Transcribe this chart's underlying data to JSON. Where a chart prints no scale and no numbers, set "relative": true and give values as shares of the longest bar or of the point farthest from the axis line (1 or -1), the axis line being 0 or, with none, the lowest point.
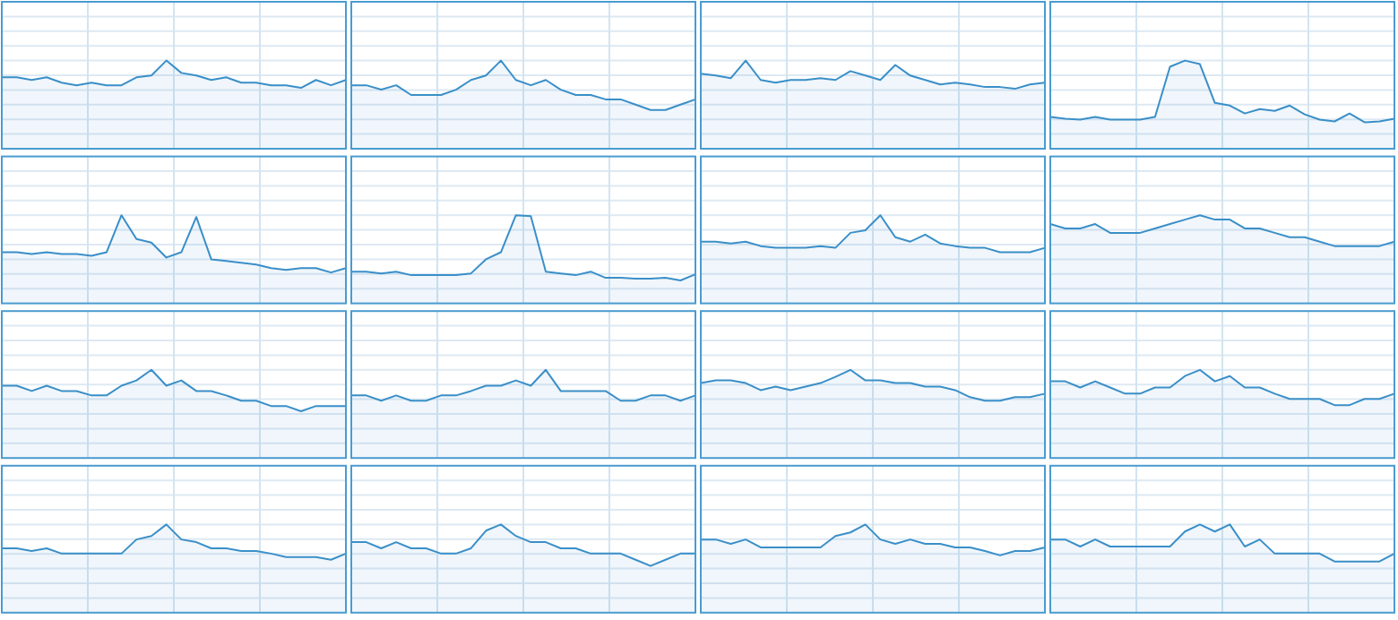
{
  "chart_data": [
    {
      "type": "area",
      "relative": true,
      "grid": true,
      "color": "#3a8fc8",
      "categories": [
        null,
        null,
        null,
        null,
        null,
        null,
        null,
        null,
        null,
        null,
        null,
        null,
        null,
        null,
        null,
        null,
        null,
        null,
        null,
        null,
        null,
        null,
        null,
        null
      ],
      "values": [
        0.81,
        0.81,
        0.78,
        0.81,
        0.75,
        0.72,
        0.75,
        0.72,
        0.72,
        0.81,
        0.83,
        1,
        0.86,
        0.83,
        0.78,
        0.81,
        0.75,
        0.75,
        0.72,
        0.72,
        0.69,
        0.78,
        0.72,
        0.78
      ]
    },
    {
      "type": "area",
      "relative": true,
      "grid": true,
      "color": "#3a8fc8",
      "categories": [
        null,
        null,
        null,
        null,
        null,
        null,
        null,
        null,
        null,
        null,
        null,
        null,
        null,
        null,
        null,
        null,
        null,
        null,
        null,
        null,
        null,
        null,
        null,
        null
      ],
      "values": [
        0.72,
        0.72,
        0.67,
        0.72,
        0.61,
        0.61,
        0.61,
        0.67,
        0.78,
        0.83,
        1,
        0.78,
        0.72,
        0.78,
        0.67,
        0.61,
        0.61,
        0.56,
        0.56,
        0.5,
        0.44,
        0.44,
        0.5,
        0.56
      ]
    },
    {
      "type": "area",
      "relative": true,
      "grid": true,
      "color": "#3a8fc8",
      "categories": [
        null,
        null,
        null,
        null,
        null,
        null,
        null,
        null,
        null,
        null,
        null,
        null,
        null,
        null,
        null,
        null,
        null,
        null,
        null,
        null,
        null,
        null,
        null,
        null
      ],
      "values": [
        0.85,
        0.83,
        0.8,
        1,
        0.78,
        0.75,
        0.78,
        0.78,
        0.8,
        0.78,
        0.88,
        0.83,
        0.78,
        0.95,
        0.83,
        0.78,
        0.73,
        0.75,
        0.73,
        0.7,
        0.7,
        0.68,
        0.73,
        0.75
      ]
    },
    {
      "type": "area",
      "relative": true,
      "grid": true,
      "color": "#3a8fc8",
      "categories": [
        null,
        null,
        null,
        null,
        null,
        null,
        null,
        null,
        null,
        null,
        null,
        null,
        null,
        null,
        null,
        null,
        null,
        null,
        null,
        null,
        null,
        null,
        null,
        null
      ],
      "values": [
        0.36,
        0.34,
        0.33,
        0.36,
        0.33,
        0.33,
        0.33,
        0.36,
        0.93,
        1,
        0.96,
        0.52,
        0.49,
        0.4,
        0.45,
        0.43,
        0.49,
        0.39,
        0.33,
        0.31,
        0.4,
        0.3,
        0.31,
        0.34
      ]
    },
    {
      "type": "area",
      "relative": true,
      "grid": true,
      "color": "#3a8fc8",
      "categories": [
        null,
        null,
        null,
        null,
        null,
        null,
        null,
        null,
        null,
        null,
        null,
        null,
        null,
        null,
        null,
        null,
        null,
        null,
        null,
        null,
        null,
        null,
        null,
        null
      ],
      "values": [
        0.58,
        0.58,
        0.56,
        0.58,
        0.56,
        0.56,
        0.54,
        0.58,
        1,
        0.73,
        0.69,
        0.52,
        0.58,
        0.98,
        0.5,
        0.48,
        0.46,
        0.44,
        0.4,
        0.38,
        0.4,
        0.4,
        0.35,
        0.4
      ]
    },
    {
      "type": "area",
      "relative": true,
      "grid": true,
      "color": "#3a8fc8",
      "categories": [
        null,
        null,
        null,
        null,
        null,
        null,
        null,
        null,
        null,
        null,
        null,
        null,
        null,
        null,
        null,
        null,
        null,
        null,
        null,
        null,
        null,
        null,
        null,
        null
      ],
      "values": [
        0.36,
        0.36,
        0.34,
        0.36,
        0.32,
        0.32,
        0.32,
        0.32,
        0.34,
        0.5,
        0.58,
        1,
        0.99,
        0.36,
        0.34,
        0.32,
        0.36,
        0.29,
        0.29,
        0.28,
        0.28,
        0.29,
        0.26,
        0.33
      ]
    },
    {
      "type": "area",
      "relative": true,
      "grid": true,
      "color": "#3a8fc8",
      "categories": [
        null,
        null,
        null,
        null,
        null,
        null,
        null,
        null,
        null,
        null,
        null,
        null,
        null,
        null,
        null,
        null,
        null,
        null,
        null,
        null,
        null,
        null,
        null,
        null
      ],
      "values": [
        0.7,
        0.7,
        0.68,
        0.7,
        0.65,
        0.63,
        0.63,
        0.63,
        0.65,
        0.63,
        0.8,
        0.83,
        1,
        0.75,
        0.7,
        0.78,
        0.68,
        0.65,
        0.63,
        0.63,
        0.58,
        0.58,
        0.58,
        0.63
      ]
    },
    {
      "type": "area",
      "relative": true,
      "grid": true,
      "color": "#3a8fc8",
      "categories": [
        null,
        null,
        null,
        null,
        null,
        null,
        null,
        null,
        null,
        null,
        null,
        null,
        null,
        null,
        null,
        null,
        null,
        null,
        null,
        null,
        null,
        null,
        null,
        null
      ],
      "values": [
        0.9,
        0.85,
        0.85,
        0.9,
        0.8,
        0.8,
        0.8,
        0.85,
        0.9,
        0.95,
        1,
        0.95,
        0.95,
        0.85,
        0.85,
        0.8,
        0.75,
        0.75,
        0.7,
        0.65,
        0.65,
        0.65,
        0.65,
        0.7
      ]
    },
    {
      "type": "area",
      "relative": true,
      "grid": true,
      "color": "#3a8fc8",
      "categories": [
        null,
        null,
        null,
        null,
        null,
        null,
        null,
        null,
        null,
        null,
        null,
        null,
        null,
        null,
        null,
        null,
        null,
        null,
        null,
        null,
        null,
        null,
        null,
        null
      ],
      "values": [
        0.82,
        0.82,
        0.76,
        0.82,
        0.76,
        0.76,
        0.71,
        0.71,
        0.82,
        0.88,
        1,
        0.82,
        0.88,
        0.76,
        0.76,
        0.71,
        0.65,
        0.65,
        0.59,
        0.59,
        0.53,
        0.59,
        0.59,
        0.59
      ]
    },
    {
      "type": "area",
      "relative": true,
      "grid": true,
      "color": "#3a8fc8",
      "categories": [
        null,
        null,
        null,
        null,
        null,
        null,
        null,
        null,
        null,
        null,
        null,
        null,
        null,
        null,
        null,
        null,
        null,
        null,
        null,
        null,
        null,
        null,
        null,
        null
      ],
      "values": [
        0.71,
        0.71,
        0.65,
        0.71,
        0.65,
        0.65,
        0.71,
        0.71,
        0.76,
        0.82,
        0.82,
        0.88,
        0.82,
        1,
        0.76,
        0.76,
        0.76,
        0.76,
        0.65,
        0.65,
        0.71,
        0.71,
        0.65,
        0.71
      ]
    },
    {
      "type": "area",
      "relative": true,
      "grid": true,
      "color": "#3a8fc8",
      "categories": [
        null,
        null,
        null,
        null,
        null,
        null,
        null,
        null,
        null,
        null,
        null,
        null,
        null,
        null,
        null,
        null,
        null,
        null,
        null,
        null,
        null,
        null,
        null,
        null
      ],
      "values": [
        0.85,
        0.88,
        0.88,
        0.85,
        0.77,
        0.81,
        0.77,
        0.81,
        0.85,
        0.92,
        1,
        0.88,
        0.88,
        0.85,
        0.85,
        0.81,
        0.81,
        0.77,
        0.69,
        0.65,
        0.65,
        0.69,
        0.69,
        0.73
      ]
    },
    {
      "type": "area",
      "relative": true,
      "grid": true,
      "color": "#3a8fc8",
      "categories": [
        null,
        null,
        null,
        null,
        null,
        null,
        null,
        null,
        null,
        null,
        null,
        null,
        null,
        null,
        null,
        null,
        null,
        null,
        null,
        null,
        null,
        null,
        null,
        null
      ],
      "values": [
        0.87,
        0.87,
        0.8,
        0.87,
        0.8,
        0.73,
        0.73,
        0.8,
        0.8,
        0.93,
        1,
        0.87,
        0.93,
        0.8,
        0.8,
        0.73,
        0.67,
        0.67,
        0.67,
        0.6,
        0.6,
        0.67,
        0.67,
        0.73
      ]
    },
    {
      "type": "area",
      "relative": true,
      "grid": true,
      "color": "#3a8fc8",
      "categories": [
        null,
        null,
        null,
        null,
        null,
        null,
        null,
        null,
        null,
        null,
        null,
        null,
        null,
        null,
        null,
        null,
        null,
        null,
        null,
        null,
        null,
        null,
        null,
        null
      ],
      "values": [
        0.73,
        0.73,
        0.7,
        0.73,
        0.67,
        0.67,
        0.67,
        0.67,
        0.67,
        0.83,
        0.87,
        1,
        0.83,
        0.8,
        0.73,
        0.73,
        0.7,
        0.7,
        0.67,
        0.63,
        0.63,
        0.63,
        0.6,
        0.67
      ]
    },
    {
      "type": "area",
      "relative": true,
      "grid": true,
      "color": "#3a8fc8",
      "categories": [
        null,
        null,
        null,
        null,
        null,
        null,
        null,
        null,
        null,
        null,
        null,
        null,
        null,
        null,
        null,
        null,
        null,
        null,
        null,
        null,
        null,
        null,
        null,
        null
      ],
      "values": [
        0.8,
        0.8,
        0.73,
        0.8,
        0.73,
        0.73,
        0.67,
        0.67,
        0.73,
        0.93,
        1,
        0.87,
        0.8,
        0.8,
        0.73,
        0.73,
        0.67,
        0.67,
        0.67,
        0.6,
        0.53,
        0.6,
        0.67,
        0.67
      ]
    },
    {
      "type": "area",
      "relative": true,
      "grid": true,
      "color": "#3a8fc8",
      "categories": [
        null,
        null,
        null,
        null,
        null,
        null,
        null,
        null,
        null,
        null,
        null,
        null,
        null,
        null,
        null,
        null,
        null,
        null,
        null,
        null,
        null,
        null,
        null,
        null
      ],
      "values": [
        0.83,
        0.83,
        0.78,
        0.83,
        0.74,
        0.74,
        0.74,
        0.74,
        0.74,
        0.87,
        0.91,
        1,
        0.83,
        0.78,
        0.83,
        0.78,
        0.78,
        0.74,
        0.74,
        0.7,
        0.65,
        0.7,
        0.7,
        0.74
      ]
    },
    {
      "type": "area",
      "relative": true,
      "grid": true,
      "color": "#3a8fc8",
      "categories": [
        null,
        null,
        null,
        null,
        null,
        null,
        null,
        null,
        null,
        null,
        null,
        null,
        null,
        null,
        null,
        null,
        null,
        null,
        null,
        null,
        null,
        null,
        null,
        null
      ],
      "values": [
        0.83,
        0.83,
        0.75,
        0.83,
        0.75,
        0.75,
        0.75,
        0.75,
        0.75,
        0.92,
        1,
        0.92,
        1,
        0.75,
        0.83,
        0.67,
        0.67,
        0.67,
        0.67,
        0.58,
        0.58,
        0.58,
        0.58,
        0.67
      ]
    }
  ]
}
